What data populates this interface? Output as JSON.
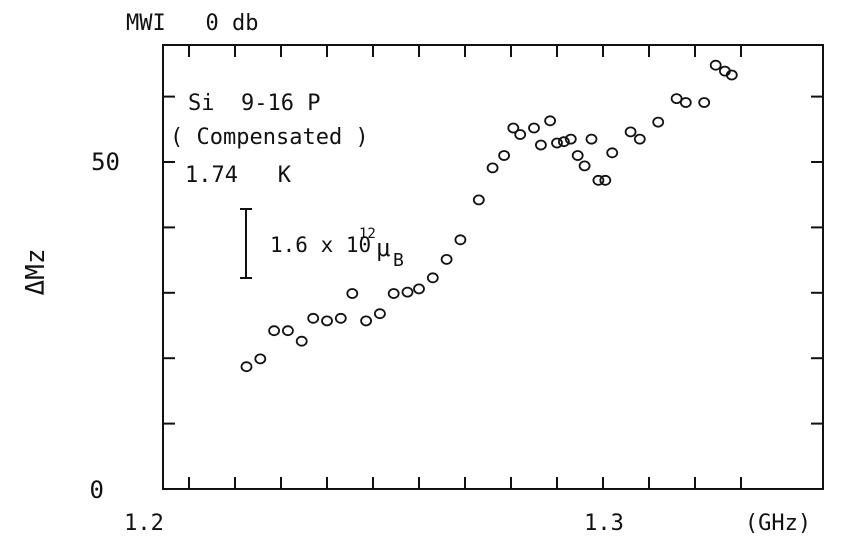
{
  "chart_data": {
    "type": "scatter",
    "header": "MWI   0 db",
    "annotation_lines": [
      "Si  9-16 P",
      "( Compensated )",
      "1.74   K"
    ],
    "scale_bar": {
      "base": "1.6 x 10",
      "exponent": "12",
      "unit_main": "μ",
      "unit_sub": "B"
    },
    "ylabel": "ΔMz",
    "xunit": "(GHz)",
    "xlim": [
      1.2,
      1.325
    ],
    "ylim": [
      0,
      66
    ],
    "x_tick_labels": [
      {
        "value": 1.2,
        "label": "1.2"
      },
      {
        "value": 1.3,
        "label": "1.3"
      }
    ],
    "y_tick_labels": [
      {
        "value": 0,
        "label": "0"
      },
      {
        "value": 50,
        "label": "50"
      }
    ],
    "grid": false,
    "series": [
      {
        "points": [
          {
            "x": 1.2225,
            "y": 18.7
          },
          {
            "x": 1.2255,
            "y": 19.9
          },
          {
            "x": 1.2285,
            "y": 24.2
          },
          {
            "x": 1.2315,
            "y": 24.2
          },
          {
            "x": 1.2345,
            "y": 22.6
          },
          {
            "x": 1.237,
            "y": 26.1
          },
          {
            "x": 1.24,
            "y": 25.7
          },
          {
            "x": 1.243,
            "y": 26.1
          },
          {
            "x": 1.2455,
            "y": 29.9
          },
          {
            "x": 1.2485,
            "y": 25.7
          },
          {
            "x": 1.2515,
            "y": 26.8
          },
          {
            "x": 1.2545,
            "y": 29.9
          },
          {
            "x": 1.2575,
            "y": 30.1
          },
          {
            "x": 1.26,
            "y": 30.6
          },
          {
            "x": 1.263,
            "y": 32.3
          },
          {
            "x": 1.266,
            "y": 35.1
          },
          {
            "x": 1.269,
            "y": 38.1
          },
          {
            "x": 1.273,
            "y": 44.2
          },
          {
            "x": 1.276,
            "y": 49.1
          },
          {
            "x": 1.2785,
            "y": 51.0
          },
          {
            "x": 1.2805,
            "y": 55.2
          },
          {
            "x": 1.282,
            "y": 54.2
          },
          {
            "x": 1.285,
            "y": 55.2
          },
          {
            "x": 1.2865,
            "y": 52.6
          },
          {
            "x": 1.2885,
            "y": 56.3
          },
          {
            "x": 1.29,
            "y": 52.9
          },
          {
            "x": 1.2915,
            "y": 53.1
          },
          {
            "x": 1.293,
            "y": 53.5
          },
          {
            "x": 1.2945,
            "y": 51.0
          },
          {
            "x": 1.296,
            "y": 49.4
          },
          {
            "x": 1.2975,
            "y": 53.5
          },
          {
            "x": 1.299,
            "y": 47.2
          },
          {
            "x": 1.3005,
            "y": 47.2
          },
          {
            "x": 1.302,
            "y": 51.4
          },
          {
            "x": 1.306,
            "y": 54.6
          },
          {
            "x": 1.308,
            "y": 53.5
          },
          {
            "x": 1.312,
            "y": 56.1
          },
          {
            "x": 1.316,
            "y": 59.7
          },
          {
            "x": 1.318,
            "y": 59.1
          },
          {
            "x": 1.322,
            "y": 59.1
          },
          {
            "x": 1.3245,
            "y": 64.8
          },
          {
            "x": 1.3265,
            "y": 63.9
          },
          {
            "x": 1.328,
            "y": 63.3
          }
        ]
      }
    ]
  }
}
